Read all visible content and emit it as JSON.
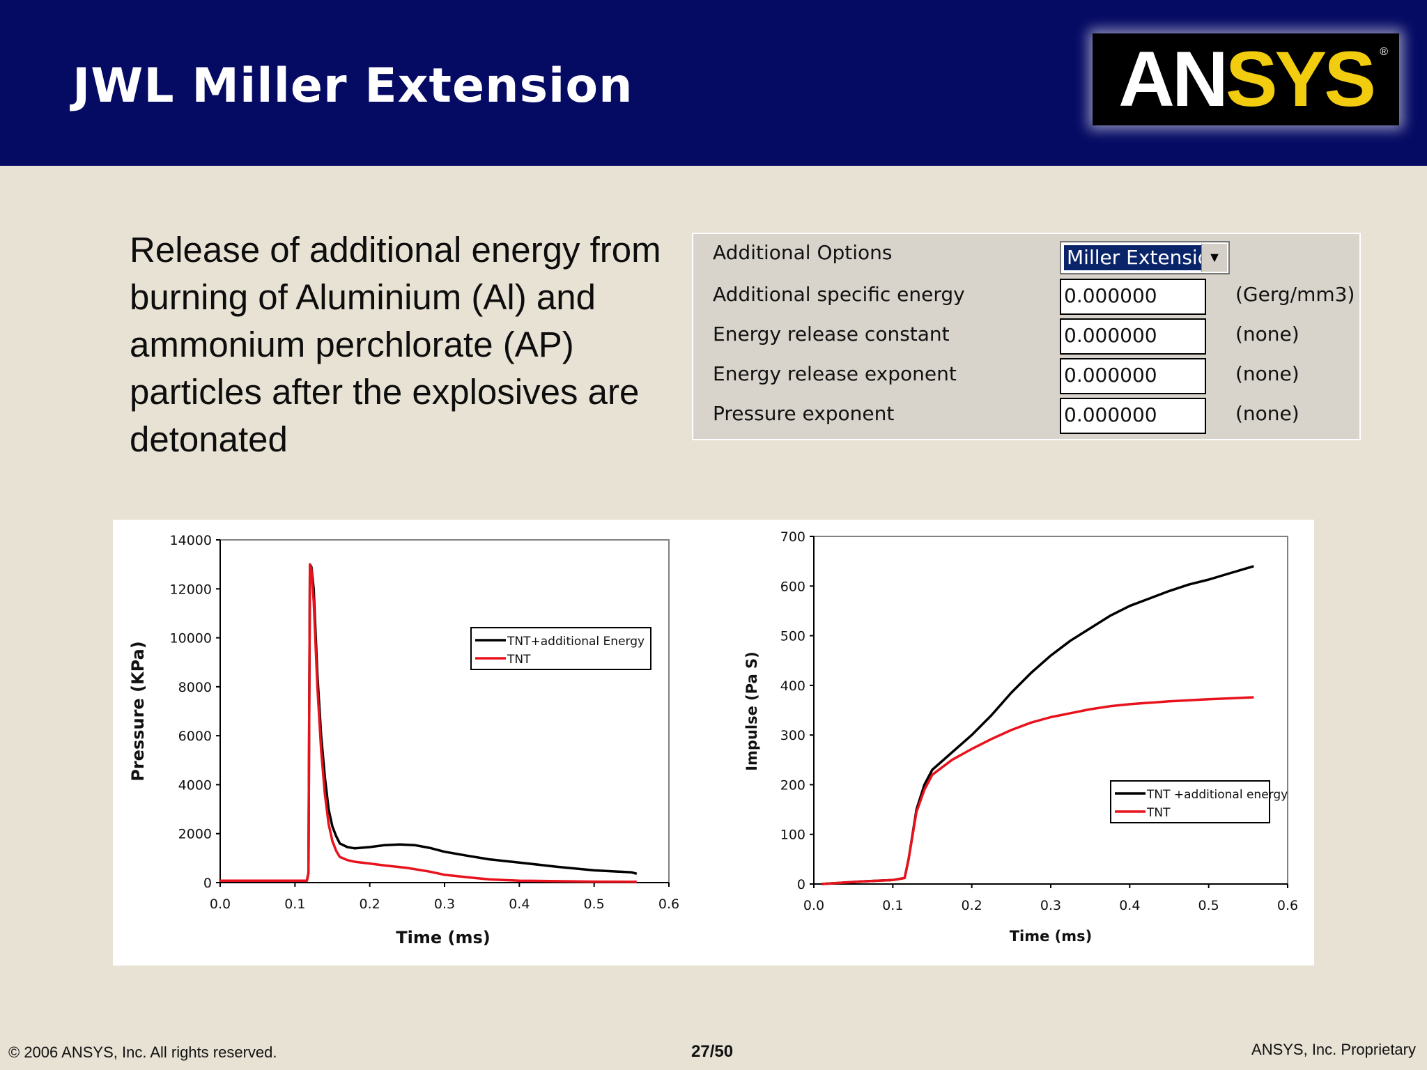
{
  "slide": {
    "title": "JWL Miller Extension",
    "body_text": "Release of additional energy from burning of Aluminium (Al) and ammonium perchlorate (AP) particles after the explosives are detonated",
    "footer_left": "© 2006 ANSYS, Inc.  All rights reserved.",
    "page_number": "27/50",
    "footer_right": "ANSYS, Inc. Proprietary",
    "logo_text_white": "AN",
    "logo_text_yellow": "SYS",
    "logo_reg": "®"
  },
  "options_panel": {
    "rows": [
      {
        "label": "Additional Options",
        "selected": "Miller Extension"
      },
      {
        "label": "Additional specific energy",
        "value": "0.000000",
        "unit": "(Gerg/mm3)"
      },
      {
        "label": "Energy release constant",
        "value": "0.000000",
        "unit": "(none)"
      },
      {
        "label": "Energy release exponent",
        "value": "0.000000",
        "unit": "(none)"
      },
      {
        "label": "Pressure exponent",
        "value": "0.000000",
        "unit": "(none)"
      }
    ],
    "dropdown_icon": "chevron-down-icon"
  },
  "colors": {
    "header_bg": "#050a63",
    "logo_yellow": "#f2cc0f",
    "series_black": "#000000",
    "series_red": "#e8121c"
  },
  "chart_data": [
    {
      "type": "line",
      "xlabel": "Time (ms)",
      "ylabel": "Pressure (KPa)",
      "xlim": [
        0,
        0.6
      ],
      "ylim": [
        0,
        14000
      ],
      "xticks": [
        "0.0",
        "0.1",
        "0.2",
        "0.3",
        "0.4",
        "0.5",
        "0.6"
      ],
      "yticks": [
        "0",
        "2000",
        "4000",
        "6000",
        "8000",
        "10000",
        "12000",
        "14000"
      ],
      "legend": "top-right",
      "series": [
        {
          "name": "TNT+additional Energy",
          "color": "#000000",
          "points": [
            [
              0,
              80
            ],
            [
              0.11,
              80
            ],
            [
              0.116,
              80
            ],
            [
              0.118,
              400
            ],
            [
              0.12,
              13000
            ],
            [
              0.122,
              12900
            ],
            [
              0.125,
              12000
            ],
            [
              0.13,
              8500
            ],
            [
              0.135,
              6000
            ],
            [
              0.14,
              4300
            ],
            [
              0.145,
              3000
            ],
            [
              0.15,
              2300
            ],
            [
              0.155,
              1900
            ],
            [
              0.16,
              1600
            ],
            [
              0.17,
              1450
            ],
            [
              0.18,
              1400
            ],
            [
              0.2,
              1450
            ],
            [
              0.22,
              1530
            ],
            [
              0.24,
              1560
            ],
            [
              0.26,
              1530
            ],
            [
              0.28,
              1420
            ],
            [
              0.3,
              1260
            ],
            [
              0.33,
              1100
            ],
            [
              0.36,
              950
            ],
            [
              0.4,
              820
            ],
            [
              0.45,
              650
            ],
            [
              0.5,
              500
            ],
            [
              0.55,
              420
            ],
            [
              0.557,
              360
            ]
          ]
        },
        {
          "name": "TNT",
          "color": "#e8121c",
          "points": [
            [
              0,
              80
            ],
            [
              0.11,
              80
            ],
            [
              0.116,
              80
            ],
            [
              0.118,
              400
            ],
            [
              0.12,
              13000
            ],
            [
              0.122,
              12800
            ],
            [
              0.125,
              11500
            ],
            [
              0.13,
              8000
            ],
            [
              0.135,
              5400
            ],
            [
              0.14,
              3600
            ],
            [
              0.145,
              2400
            ],
            [
              0.15,
              1700
            ],
            [
              0.155,
              1300
            ],
            [
              0.16,
              1050
            ],
            [
              0.17,
              920
            ],
            [
              0.18,
              850
            ],
            [
              0.2,
              780
            ],
            [
              0.22,
              700
            ],
            [
              0.25,
              600
            ],
            [
              0.28,
              450
            ],
            [
              0.3,
              320
            ],
            [
              0.33,
              220
            ],
            [
              0.36,
              130
            ],
            [
              0.4,
              80
            ],
            [
              0.5,
              40
            ],
            [
              0.557,
              30
            ]
          ]
        }
      ]
    },
    {
      "type": "line",
      "xlabel": "Time (ms)",
      "ylabel": "Impulse (Pa S)",
      "xlim": [
        0,
        0.6
      ],
      "ylim": [
        0,
        700
      ],
      "xticks": [
        "0.0",
        "0.1",
        "0.2",
        "0.3",
        "0.4",
        "0.5",
        "0.6"
      ],
      "yticks": [
        "0",
        "100",
        "200",
        "300",
        "400",
        "500",
        "600",
        "700"
      ],
      "legend": "bottom-right",
      "series": [
        {
          "name": "TNT +additional energy",
          "color": "#000000",
          "points": [
            [
              0.01,
              0
            ],
            [
              0.06,
              5
            ],
            [
              0.1,
              8
            ],
            [
              0.115,
              12
            ],
            [
              0.12,
              50
            ],
            [
              0.13,
              150
            ],
            [
              0.14,
              200
            ],
            [
              0.15,
              230
            ],
            [
              0.175,
              265
            ],
            [
              0.2,
              300
            ],
            [
              0.225,
              340
            ],
            [
              0.25,
              385
            ],
            [
              0.275,
              425
            ],
            [
              0.3,
              460
            ],
            [
              0.325,
              490
            ],
            [
              0.35,
              515
            ],
            [
              0.375,
              540
            ],
            [
              0.4,
              560
            ],
            [
              0.425,
              575
            ],
            [
              0.45,
              590
            ],
            [
              0.475,
              603
            ],
            [
              0.5,
              613
            ],
            [
              0.525,
              625
            ],
            [
              0.557,
              640
            ]
          ]
        },
        {
          "name": "TNT",
          "color": "#e8121c",
          "points": [
            [
              0.01,
              0
            ],
            [
              0.06,
              5
            ],
            [
              0.1,
              8
            ],
            [
              0.115,
              12
            ],
            [
              0.12,
              50
            ],
            [
              0.13,
              145
            ],
            [
              0.14,
              190
            ],
            [
              0.15,
              220
            ],
            [
              0.175,
              250
            ],
            [
              0.2,
              272
            ],
            [
              0.225,
              292
            ],
            [
              0.25,
              310
            ],
            [
              0.275,
              325
            ],
            [
              0.3,
              336
            ],
            [
              0.325,
              344
            ],
            [
              0.35,
              352
            ],
            [
              0.375,
              358
            ],
            [
              0.4,
              362
            ],
            [
              0.425,
              365
            ],
            [
              0.45,
              368
            ],
            [
              0.5,
              372
            ],
            [
              0.557,
              376
            ]
          ]
        }
      ]
    }
  ]
}
